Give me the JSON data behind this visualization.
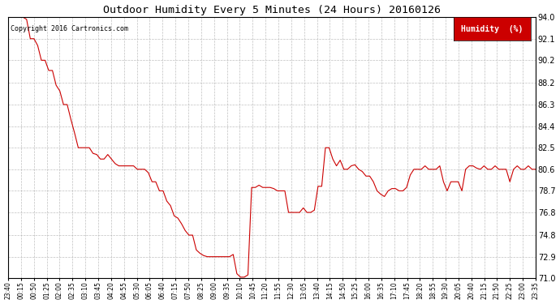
{
  "title": "Outdoor Humidity Every 5 Minutes (24 Hours) 20160126",
  "copyright_text": "Copyright 2016 Cartronics.com",
  "legend_label": "Humidity  (%)",
  "line_color": "#cc0000",
  "background_color": "#ffffff",
  "grid_color": "#b0b0b0",
  "ylim": [
    71.0,
    94.0
  ],
  "yticks": [
    71.0,
    72.9,
    74.8,
    76.8,
    78.7,
    80.6,
    82.5,
    84.4,
    86.3,
    88.2,
    90.2,
    92.1,
    94.0
  ],
  "x_labels": [
    "23:40",
    "00:15",
    "00:50",
    "01:25",
    "02:00",
    "02:35",
    "03:10",
    "03:45",
    "04:20",
    "04:55",
    "05:30",
    "06:05",
    "06:40",
    "07:15",
    "07:50",
    "08:25",
    "09:00",
    "09:35",
    "10:10",
    "10:45",
    "11:20",
    "11:55",
    "12:30",
    "13:05",
    "13:40",
    "14:15",
    "14:50",
    "15:25",
    "16:00",
    "16:35",
    "17:10",
    "17:45",
    "18:20",
    "18:55",
    "19:30",
    "20:05",
    "20:40",
    "21:15",
    "21:50",
    "22:25",
    "23:00",
    "23:35"
  ],
  "humidity_values": [
    94.0,
    94.0,
    94.0,
    94.0,
    94.0,
    93.8,
    92.1,
    92.1,
    91.5,
    90.2,
    90.2,
    89.3,
    89.3,
    88.0,
    87.5,
    86.3,
    86.3,
    85.0,
    83.8,
    82.5,
    82.5,
    82.5,
    82.5,
    82.0,
    81.9,
    81.5,
    81.5,
    81.9,
    81.5,
    81.1,
    80.9,
    80.9,
    80.9,
    80.9,
    80.9,
    80.6,
    80.6,
    80.6,
    80.3,
    79.5,
    79.5,
    78.7,
    78.7,
    77.8,
    77.4,
    76.5,
    76.3,
    75.8,
    75.2,
    74.8,
    74.8,
    73.5,
    73.2,
    73.0,
    72.9,
    72.9,
    72.9,
    72.9,
    72.9,
    72.9,
    72.9,
    73.1,
    71.4,
    71.1,
    71.1,
    71.3,
    79.0,
    79.0,
    79.2,
    79.0,
    79.0,
    79.0,
    78.9,
    78.7,
    78.7,
    78.7,
    76.8,
    76.8,
    76.8,
    76.8,
    77.2,
    76.8,
    76.8,
    77.0,
    79.1,
    79.1,
    82.5,
    82.5,
    81.5,
    80.9,
    81.4,
    80.6,
    80.6,
    80.9,
    81.0,
    80.6,
    80.4,
    80.0,
    80.0,
    79.5,
    78.7,
    78.4,
    78.2,
    78.7,
    78.9,
    78.9,
    78.7,
    78.7,
    79.0,
    80.1,
    80.6,
    80.6,
    80.6,
    80.9,
    80.6,
    80.6,
    80.6,
    80.9,
    79.5,
    78.7,
    79.5,
    79.5,
    79.5,
    78.7,
    80.6,
    80.9,
    80.9,
    80.7,
    80.6,
    80.9,
    80.6,
    80.6,
    80.9,
    80.6,
    80.6,
    80.6,
    79.5,
    80.6,
    80.9,
    80.6,
    80.6,
    80.9,
    80.6,
    80.6
  ]
}
